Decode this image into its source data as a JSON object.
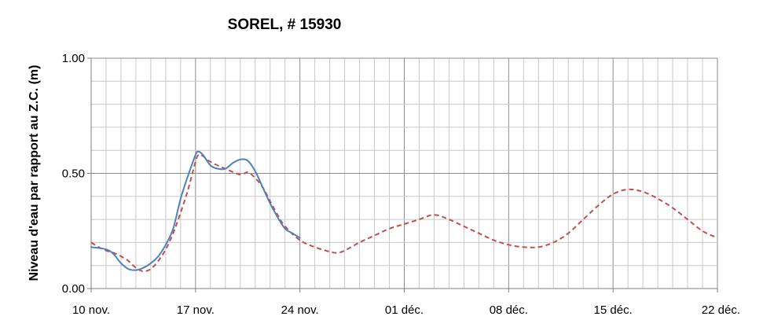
{
  "chart_data": {
    "type": "line",
    "title": "SOREL, # 15930",
    "xlabel": "",
    "ylabel": "Niveau d'eau par rapport  au Z.C. (m)",
    "x_range": [
      0,
      42
    ],
    "ylim": [
      0,
      1
    ],
    "y_ticks": [
      0,
      0.5,
      1
    ],
    "y_tick_labels": [
      "0.00",
      "0.50",
      "1.00"
    ],
    "x_ticks": [
      0,
      7,
      14,
      21,
      28,
      35,
      42
    ],
    "x_tick_labels": [
      "10 nov.",
      "17 nov.",
      "24 nov.",
      "01 déc.",
      "08 déc.",
      "15 déc.",
      "22 déc."
    ],
    "grid": true,
    "legend": "none",
    "series": [
      {
        "style": "solid",
        "color": "#4f81bd",
        "points": [
          [
            0,
            0.18
          ],
          [
            1,
            0.17
          ],
          [
            1.5,
            0.15
          ],
          [
            2,
            0.11
          ],
          [
            2.5,
            0.085
          ],
          [
            3,
            0.08
          ],
          [
            3.5,
            0.09
          ],
          [
            4,
            0.11
          ],
          [
            4.5,
            0.14
          ],
          [
            5,
            0.19
          ],
          [
            5.5,
            0.26
          ],
          [
            6,
            0.39
          ],
          [
            6.5,
            0.49
          ],
          [
            7,
            0.58
          ],
          [
            7.2,
            0.595
          ],
          [
            7.5,
            0.58
          ],
          [
            8,
            0.535
          ],
          [
            8.5,
            0.52
          ],
          [
            9,
            0.52
          ],
          [
            9.5,
            0.545
          ],
          [
            10,
            0.56
          ],
          [
            10.5,
            0.555
          ],
          [
            11,
            0.51
          ],
          [
            11.5,
            0.44
          ],
          [
            12,
            0.37
          ],
          [
            12.5,
            0.31
          ],
          [
            13,
            0.26
          ],
          [
            13.5,
            0.24
          ],
          [
            14,
            0.22
          ]
        ]
      },
      {
        "style": "dashed",
        "color": "#c0504d",
        "points": [
          [
            0,
            0.2
          ],
          [
            0.5,
            0.18
          ],
          [
            1,
            0.165
          ],
          [
            1.5,
            0.155
          ],
          [
            2,
            0.14
          ],
          [
            2.5,
            0.12
          ],
          [
            3,
            0.09
          ],
          [
            3.5,
            0.075
          ],
          [
            4,
            0.085
          ],
          [
            4.5,
            0.12
          ],
          [
            5,
            0.17
          ],
          [
            5.5,
            0.24
          ],
          [
            6,
            0.33
          ],
          [
            6.5,
            0.43
          ],
          [
            7,
            0.55
          ],
          [
            7.2,
            0.58
          ],
          [
            7.5,
            0.575
          ],
          [
            8,
            0.55
          ],
          [
            9,
            0.52
          ],
          [
            10,
            0.495
          ],
          [
            10.5,
            0.505
          ],
          [
            11,
            0.48
          ],
          [
            11.5,
            0.44
          ],
          [
            12,
            0.38
          ],
          [
            12.5,
            0.32
          ],
          [
            13,
            0.27
          ],
          [
            14,
            0.21
          ],
          [
            15,
            0.18
          ],
          [
            16,
            0.16
          ],
          [
            16.5,
            0.155
          ],
          [
            17,
            0.165
          ],
          [
            18,
            0.2
          ],
          [
            19,
            0.23
          ],
          [
            20,
            0.26
          ],
          [
            21,
            0.28
          ],
          [
            22,
            0.3
          ],
          [
            23,
            0.32
          ],
          [
            24,
            0.3
          ],
          [
            25,
            0.27
          ],
          [
            26,
            0.24
          ],
          [
            27,
            0.21
          ],
          [
            28,
            0.19
          ],
          [
            29,
            0.18
          ],
          [
            30,
            0.18
          ],
          [
            31,
            0.2
          ],
          [
            32,
            0.24
          ],
          [
            33,
            0.3
          ],
          [
            34,
            0.36
          ],
          [
            35,
            0.41
          ],
          [
            36,
            0.43
          ],
          [
            37,
            0.42
          ],
          [
            38,
            0.39
          ],
          [
            39,
            0.35
          ],
          [
            40,
            0.3
          ],
          [
            41,
            0.25
          ],
          [
            42,
            0.22
          ]
        ]
      }
    ]
  }
}
